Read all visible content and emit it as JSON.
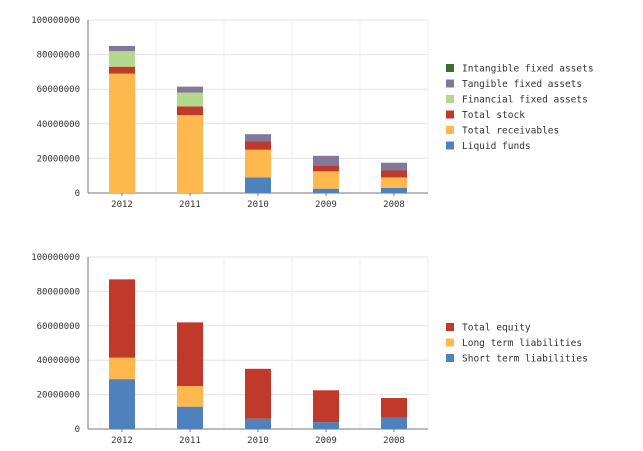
{
  "chart_data": [
    {
      "type": "bar",
      "stacked": true,
      "categories": [
        "2012",
        "2011",
        "2010",
        "2009",
        "2008"
      ],
      "ylim": [
        0,
        100000000
      ],
      "yticks": [
        "100000000",
        "80000000",
        "60000000",
        "40000000",
        "20000000",
        "0"
      ],
      "grid": true,
      "legend_placement": "right",
      "series": [
        {
          "name": "Liquid funds",
          "color": "#4f81bd",
          "values": [
            0,
            0,
            9000000,
            2500000,
            3000000
          ]
        },
        {
          "name": "Total receivables",
          "color": "#ffb84d",
          "values": [
            69000000,
            45000000,
            16000000,
            10000000,
            6000000
          ]
        },
        {
          "name": "Total stock",
          "color": "#c0392b",
          "values": [
            4000000,
            5000000,
            5000000,
            3500000,
            4000000
          ]
        },
        {
          "name": "Financial fixed assets",
          "color": "#b5d98c",
          "values": [
            9000000,
            8000000,
            0,
            0,
            0
          ]
        },
        {
          "name": "Tangible fixed assets",
          "color": "#84789a",
          "values": [
            3000000,
            3500000,
            4000000,
            5500000,
            4500000
          ]
        },
        {
          "name": "Intangible fixed assets",
          "color": "#3c6e2d",
          "values": [
            0,
            0,
            0,
            0,
            0
          ]
        }
      ],
      "legend_order": [
        "Intangible fixed assets",
        "Tangible fixed assets",
        "Financial fixed assets",
        "Total stock",
        "Total receivables",
        "Liquid funds"
      ]
    },
    {
      "type": "bar",
      "stacked": true,
      "categories": [
        "2012",
        "2011",
        "2010",
        "2009",
        "2008"
      ],
      "ylim": [
        0,
        100000000
      ],
      "yticks": [
        "100000000",
        "80000000",
        "60000000",
        "40000000",
        "20000000",
        "0"
      ],
      "grid": true,
      "legend_placement": "right",
      "series": [
        {
          "name": "Short term liabilities",
          "color": "#4f81bd",
          "values": [
            29000000,
            13000000,
            6000000,
            4000000,
            6500000
          ]
        },
        {
          "name": "Long term liabilities",
          "color": "#ffb84d",
          "values": [
            12500000,
            12000000,
            0,
            0,
            0
          ]
        },
        {
          "name": "Total equity",
          "color": "#c0392b",
          "values": [
            45500000,
            37000000,
            29000000,
            18500000,
            11500000
          ]
        }
      ],
      "legend_order": [
        "Total equity",
        "Long term liabilities",
        "Short term liabilities"
      ]
    }
  ]
}
